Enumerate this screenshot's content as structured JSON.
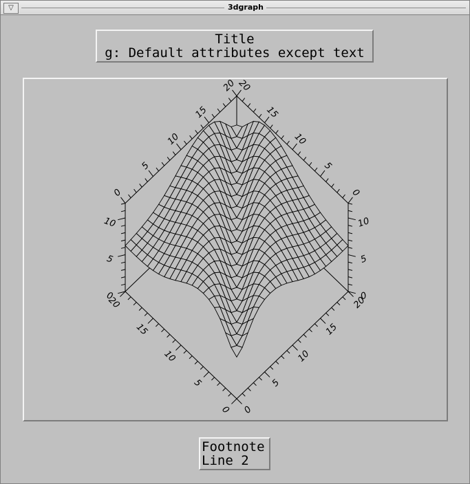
{
  "window": {
    "title": "3dgraph",
    "menu_icon": "triangle-down-icon",
    "menu_glyph": "▽"
  },
  "header": {
    "line1": "Title",
    "line2": "g: Default attributes except text"
  },
  "footer": {
    "line1": "Footnote",
    "line2": "Line 2"
  },
  "chart_data": {
    "type": "surface",
    "axes": {
      "x": {
        "range": [
          0,
          20
        ],
        "ticks": [
          "0",
          "5",
          "10",
          "15",
          "20"
        ]
      },
      "y": {
        "range": [
          0,
          20
        ],
        "ticks": [
          "0",
          "5",
          "10",
          "15",
          "20"
        ]
      },
      "z": {
        "range": [
          0,
          10
        ],
        "ticks": [
          "0",
          "5",
          "10"
        ]
      }
    },
    "grid": {
      "nx": 20,
      "ny": 20
    },
    "surface": {
      "description": "ridge surface with a central valley",
      "z_min": 2,
      "z_max": 12
    }
  }
}
